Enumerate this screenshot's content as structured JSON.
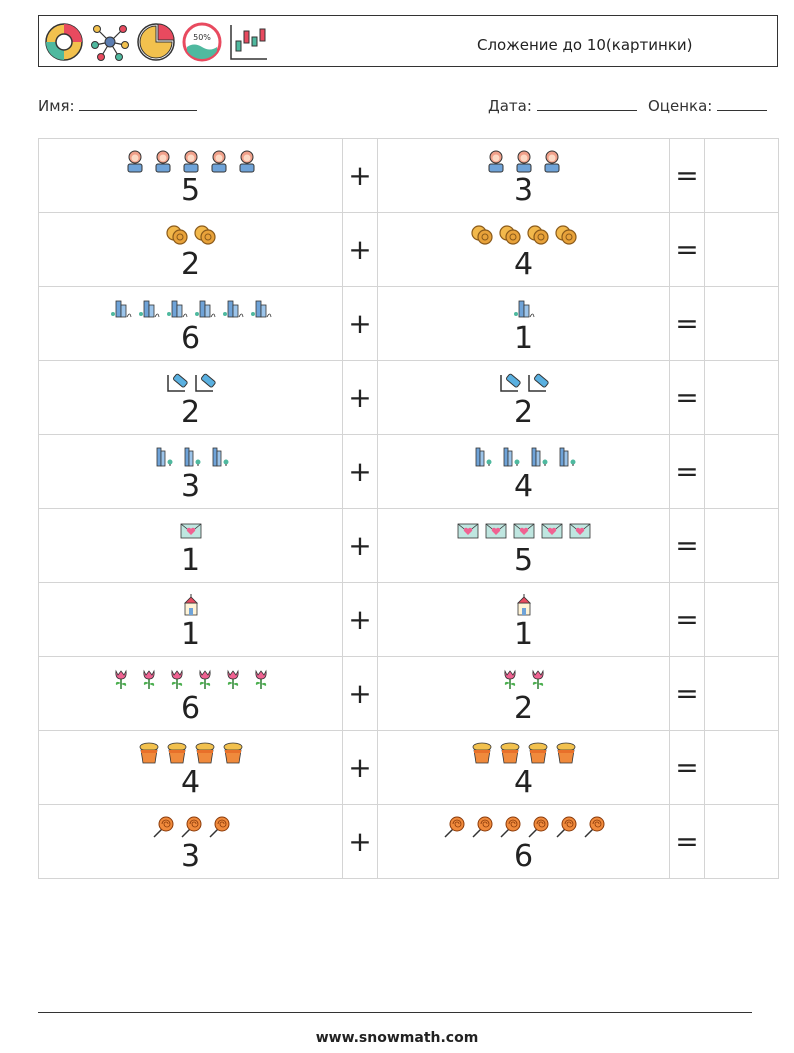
{
  "header": {
    "title": "Сложение до 10(картинки)",
    "icons": [
      "donut-chart-icon",
      "network-icon",
      "pie-chart-icon",
      "percent-gauge-icon",
      "candlestick-chart-icon"
    ],
    "gauge_text": "50%"
  },
  "meta": {
    "name_label": "Имя:",
    "date_label": "Дата:",
    "grade_label": "Оценка:"
  },
  "operators": {
    "plus": "+",
    "equals": "="
  },
  "problems": [
    {
      "a": 5,
      "b": 3,
      "icon": "woman-icon"
    },
    {
      "a": 2,
      "b": 4,
      "icon": "coins-icon"
    },
    {
      "a": 6,
      "b": 1,
      "icon": "buildings-icon"
    },
    {
      "a": 2,
      "b": 2,
      "icon": "usb-stick-icon"
    },
    {
      "a": 3,
      "b": 4,
      "icon": "tall-buildings-icon"
    },
    {
      "a": 1,
      "b": 5,
      "icon": "love-letter-icon"
    },
    {
      "a": 1,
      "b": 1,
      "icon": "church-icon"
    },
    {
      "a": 6,
      "b": 2,
      "icon": "tulip-icon"
    },
    {
      "a": 4,
      "b": 4,
      "icon": "flower-pot-icon"
    },
    {
      "a": 3,
      "b": 6,
      "icon": "lollipop-icon"
    }
  ],
  "footer": {
    "url": "www.snowmath.com"
  }
}
